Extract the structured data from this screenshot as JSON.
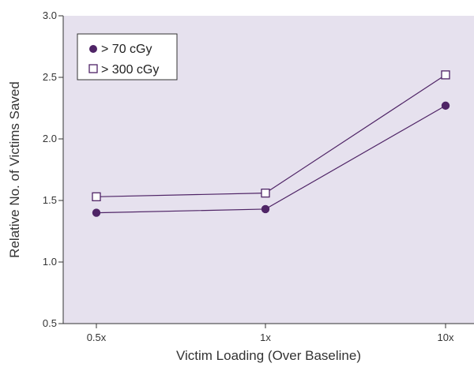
{
  "chart_data": {
    "type": "line",
    "title": "",
    "xlabel": "Victim Loading (Over Baseline)",
    "ylabel": "Relative No. of Victims Saved",
    "categories": [
      "0.5x",
      "1x",
      "10x"
    ],
    "ylim": [
      0.5,
      3.0
    ],
    "yticks": [
      "0.5",
      "1.0",
      "1.5",
      "2.0",
      "2.5",
      "3.0"
    ],
    "grid": false,
    "legend_position": "top-left",
    "series": [
      {
        "name": "> 70 cGy",
        "marker": "filled-circle",
        "values": [
          1.4,
          1.43,
          2.27
        ]
      },
      {
        "name": "> 300 cGy",
        "marker": "open-square",
        "values": [
          1.53,
          1.56,
          2.52
        ]
      }
    ],
    "colors": {
      "plot_background": "#e6e1ee",
      "series": "#4f2466",
      "axis": "#333333"
    }
  }
}
